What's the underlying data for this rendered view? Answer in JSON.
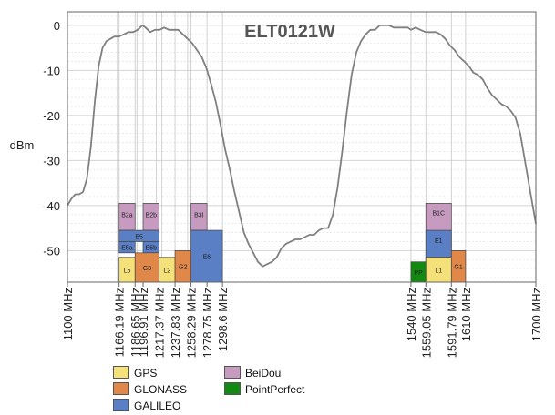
{
  "chart_data": {
    "type": "line",
    "title": "ELT0121W",
    "xlabel": "",
    "ylabel": "dBm",
    "xlim": [
      1100,
      1700
    ],
    "ylim": [
      -57,
      3
    ],
    "y_ticks": [
      0,
      -10,
      -20,
      -30,
      -40,
      -50
    ],
    "y_tick_labels": [
      "0",
      "-10",
      "-20",
      "-30",
      "-40",
      "-50"
    ],
    "x_ticks": [
      1100,
      1166.19,
      1186.65,
      1196.91,
      1217.37,
      1237.83,
      1258.29,
      1278.75,
      1298.6,
      1540,
      1559.05,
      1591.79,
      1610,
      1700
    ],
    "x_tick_labels": [
      "1100 MHz",
      "1166.19 MHz",
      "1186.65 MHz",
      "1196.91 MHz",
      "1217.37 MHz",
      "1237.83 MHz",
      "1258.29 MHz",
      "1278.75 MHz",
      "1298.6 MHz",
      "1540 MHz",
      "1559.05 MHz",
      "1591.79 MHz",
      "1610 MHz",
      "1700 MHz"
    ],
    "grid": true,
    "series": [
      {
        "color": "#808080",
        "x": [
          1100,
          1105,
          1110,
          1115,
          1120,
          1125,
          1130,
          1135,
          1140,
          1145,
          1150,
          1155,
          1160,
          1166,
          1172,
          1178,
          1184,
          1190,
          1196,
          1200,
          1206,
          1212,
          1218,
          1224,
          1230,
          1236,
          1242,
          1248,
          1254,
          1260,
          1266,
          1272,
          1278,
          1284,
          1290,
          1296,
          1302,
          1308,
          1314,
          1320,
          1326,
          1332,
          1338,
          1344,
          1350,
          1356,
          1362,
          1368,
          1374,
          1380,
          1386,
          1392,
          1398,
          1404,
          1410,
          1416,
          1422,
          1428,
          1434,
          1440,
          1446,
          1452,
          1458,
          1464,
          1470,
          1476,
          1482,
          1488,
          1494,
          1500,
          1506,
          1512,
          1518,
          1524,
          1530,
          1536,
          1540,
          1546,
          1552,
          1559,
          1566,
          1572,
          1578,
          1584,
          1590,
          1596,
          1602,
          1608,
          1614,
          1620,
          1626,
          1632,
          1638,
          1644,
          1650,
          1656,
          1662,
          1668,
          1674,
          1680,
          1686,
          1692,
          1700
        ],
        "y": [
          -40,
          -38.5,
          -37.5,
          -37.5,
          -37,
          -34,
          -27,
          -17,
          -9,
          -5,
          -3.5,
          -3,
          -2.5,
          -2.5,
          -2,
          -1.5,
          -1.5,
          -1,
          0,
          -0.5,
          -1.5,
          -1,
          -1,
          -0.5,
          -1,
          -1,
          -1,
          -2,
          -3,
          -4,
          -5.5,
          -7,
          -9.5,
          -13,
          -17,
          -22,
          -27.5,
          -32,
          -37,
          -41.5,
          -46,
          -48.5,
          -50.5,
          -52.5,
          -53.5,
          -53,
          -52.5,
          -51.5,
          -49.5,
          -48.5,
          -48,
          -47.5,
          -47.5,
          -47,
          -46.5,
          -46.5,
          -45.5,
          -45,
          -45,
          -42,
          -36,
          -28,
          -19,
          -11,
          -6,
          -3.5,
          -2,
          -1,
          -1,
          0,
          0,
          0,
          -0.5,
          -0.5,
          -0.5,
          -0.5,
          -1,
          -0.5,
          -1,
          -1.5,
          -1.5,
          -1.5,
          -2,
          -3,
          -4.5,
          -5.5,
          -7,
          -8,
          -9,
          -10.5,
          -11,
          -12,
          -14,
          -15.5,
          -16.5,
          -17.5,
          -18,
          -19,
          -20.5,
          -24,
          -30,
          -36,
          -44
        ]
      }
    ],
    "band_edges": [
      1164,
      1166.19,
      1186.65,
      1189,
      1196.91,
      1214,
      1217.37,
      1221,
      1237.83,
      1254,
      1258.29,
      1278.75,
      1298.6,
      1540,
      1559.05,
      1591.79,
      1610
    ],
    "bands": [
      {
        "label": "B2a",
        "system": "BeiDou",
        "x0": 1166.19,
        "x1": 1186.65,
        "top": -39.5,
        "bottom": -45.5
      },
      {
        "label": "B2b",
        "system": "BeiDou",
        "x0": 1196.91,
        "x1": 1217.37,
        "top": -39.5,
        "bottom": -45.5
      },
      {
        "label": "B3I",
        "system": "BeiDou",
        "x0": 1258.29,
        "x1": 1278.75,
        "top": -39.5,
        "bottom": -45.5
      },
      {
        "label": "E5",
        "system": "GALILEO",
        "x0": 1166.19,
        "x1": 1217.37,
        "top": -45.5,
        "bottom": -48
      },
      {
        "label": "E5a",
        "system": "GALILEO",
        "x0": 1166.19,
        "x1": 1186.65,
        "top": -48,
        "bottom": -50.5
      },
      {
        "label": "E5b",
        "system": "GALILEO",
        "x0": 1196.91,
        "x1": 1217.37,
        "top": -48,
        "bottom": -50.5
      },
      {
        "label": "E6",
        "system": "GALILEO",
        "x0": 1258.29,
        "x1": 1298.6,
        "top": -45.5,
        "bottom": -57
      },
      {
        "label": "L5",
        "system": "GPS",
        "x0": 1166.19,
        "x1": 1186.65,
        "top": -51.5,
        "bottom": -57
      },
      {
        "label": "G3",
        "system": "GLONASS",
        "x0": 1186.65,
        "x1": 1217.37,
        "top": -50.5,
        "bottom": -57
      },
      {
        "label": "L2",
        "system": "GPS",
        "x0": 1217.37,
        "x1": 1237.83,
        "top": -51.5,
        "bottom": -57
      },
      {
        "label": "G2",
        "system": "GLONASS",
        "x0": 1237.83,
        "x1": 1258.29,
        "top": -50,
        "bottom": -57
      },
      {
        "label": "B1C",
        "system": "BeiDou",
        "x0": 1559.05,
        "x1": 1591.79,
        "top": -39.5,
        "bottom": -57
      },
      {
        "label": "E1",
        "system": "GALILEO",
        "x0": 1559.05,
        "x1": 1591.79,
        "top": -45.5,
        "bottom": -57
      },
      {
        "label": "L1",
        "system": "GPS",
        "x0": 1559.05,
        "x1": 1591.79,
        "top": -51.5,
        "bottom": -57
      },
      {
        "label": "PP",
        "system": "PointPerfect",
        "x0": 1540,
        "x1": 1559.05,
        "top": -52.5,
        "bottom": -57
      },
      {
        "label": "G1",
        "system": "GLONASS",
        "x0": 1591.79,
        "x1": 1610,
        "top": -50,
        "bottom": -57
      }
    ],
    "legend": [
      {
        "name": "GPS",
        "color": "#f5e17a"
      },
      {
        "name": "GLONASS",
        "color": "#e0884a"
      },
      {
        "name": "GALILEO",
        "color": "#5b7fc4"
      },
      {
        "name": "BeiDou",
        "color": "#c79bc0"
      },
      {
        "name": "PointPerfect",
        "color": "#128a12"
      }
    ]
  }
}
